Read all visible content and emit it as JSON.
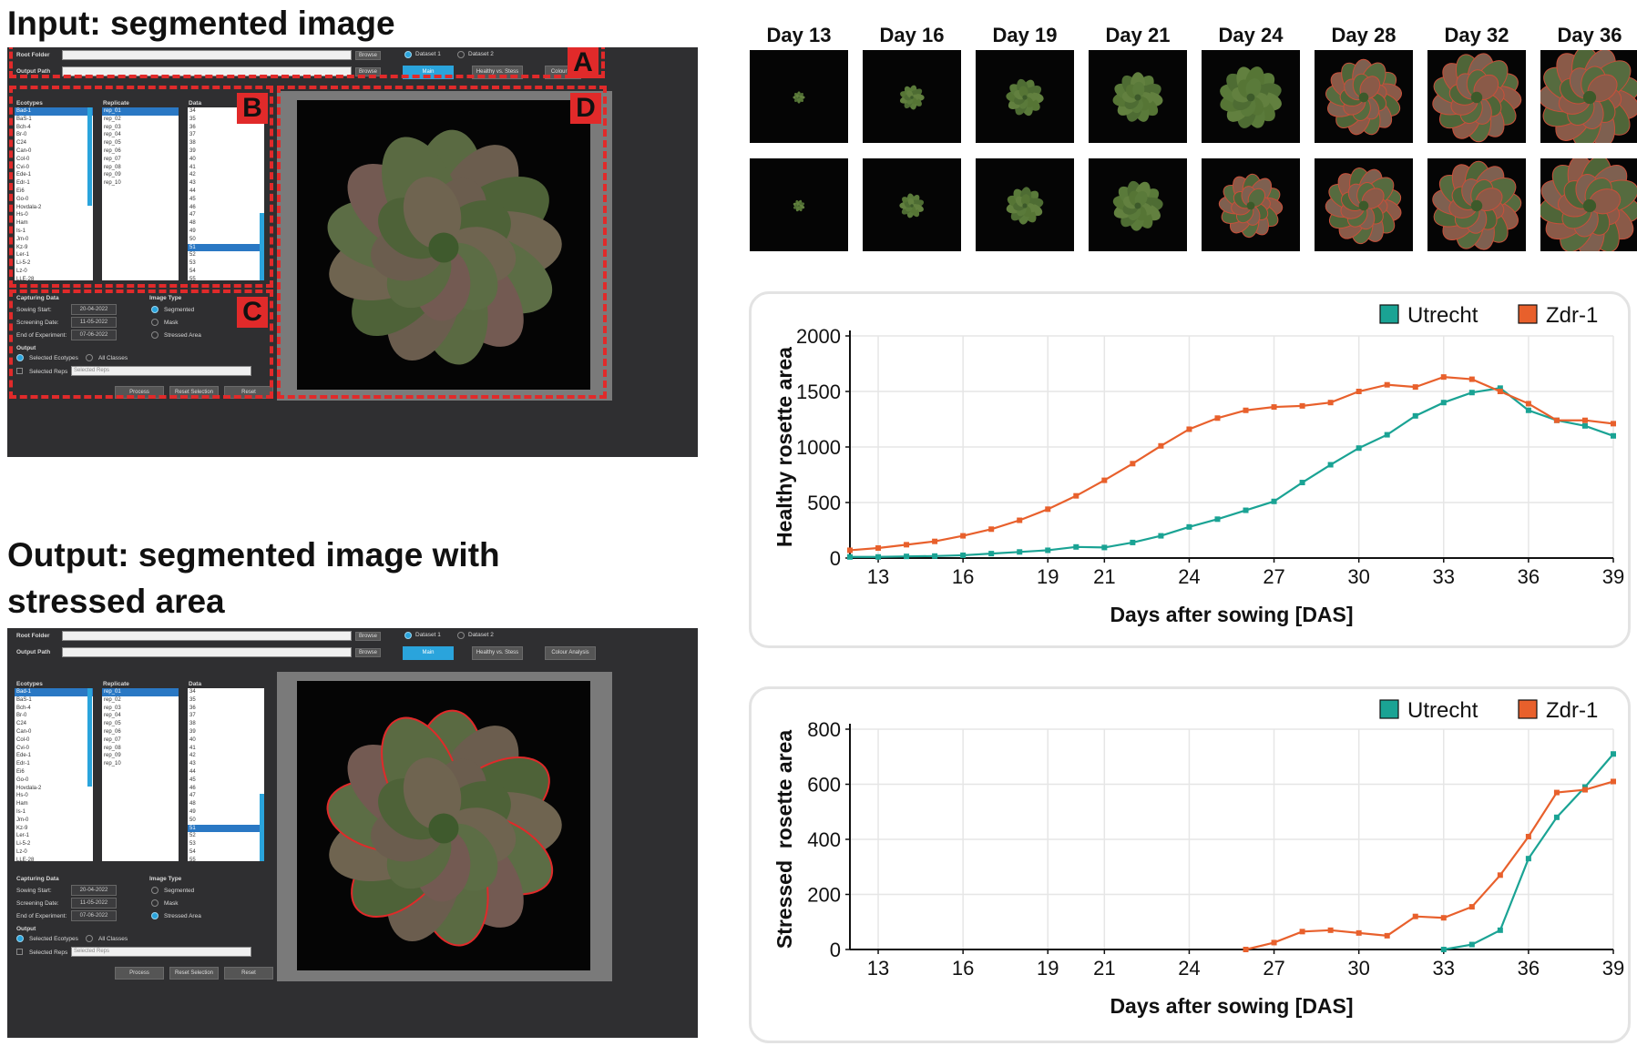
{
  "headings": {
    "input": "Input: segmented image",
    "output_line1": "Output: segmented image with",
    "output_line2": "stressed area"
  },
  "app": {
    "root_folder_label": "Root Folder",
    "output_path_label": "Output Path",
    "browse_label": "Browse",
    "dataset1_label": "Dataset 1",
    "dataset2_label": "Dataset 2",
    "main_label": "Main",
    "healthy_stress_label": "Healthy vs. Stess",
    "colour_analysis_label": "Colour Analysis",
    "colour_analysis_short": "Colour An",
    "ecotypes_header": "Ecotypes",
    "replicate_header": "Replicate",
    "data_header": "Data",
    "ecotypes": [
      "Bad-1",
      "BaS-1",
      "Bch-4",
      "Br-0",
      "C24",
      "Can-0",
      "Col-0",
      "Cvi-0",
      "Ede-1",
      "Edr-1",
      "Ei6",
      "Go-0",
      "Hovdala-2",
      "Hs-0",
      "Ham",
      "Is-1",
      "Jm-0",
      "Kz-9",
      "Ler-1",
      "Li-5-2",
      "Lz-0",
      "LLE-28"
    ],
    "replicates": [
      "rep_01",
      "rep_02",
      "rep_03",
      "rep_04",
      "rep_05",
      "rep_06",
      "rep_07",
      "rep_08",
      "rep_09",
      "rep_10"
    ],
    "data_items": [
      "34",
      "35",
      "36",
      "37",
      "38",
      "39",
      "40",
      "41",
      "42",
      "43",
      "44",
      "45",
      "46",
      "47",
      "48",
      "49",
      "50",
      "51",
      "52",
      "53",
      "54",
      "55"
    ],
    "selected_data_item": "51",
    "capturing_data_label": "Capturing Data",
    "sowing_start_label": "Sowing Start:",
    "screening_date_label": "Screening Date:",
    "end_experiment_label": "End of Experiment:",
    "sowing_start_value": "20-04-2022",
    "screening_date_value": "11-05-2022",
    "end_experiment_value": "07-06-2022",
    "image_type_label": "Image Type",
    "segmented_label": "Segmented",
    "mask_label": "Mask",
    "stressed_area_label": "Stressed Area",
    "output_label": "Output",
    "selected_ecotypes_label": "Selected Ecotypes",
    "all_classes_label": "All Classes",
    "selected_reps_label": "Selected Reps",
    "selected_reps_placeholder": "Selected Reps",
    "process_label": "Process",
    "reset_selection_label": "Reset Selection",
    "reset_label": "Reset",
    "region_tags": [
      "A",
      "B",
      "C",
      "D"
    ],
    "accent_color": "#2aa4dc"
  },
  "days": [
    "Day 13",
    "Day 16",
    "Day 19",
    "Day 21",
    "Day 24",
    "Day 28",
    "Day 32",
    "Day 36"
  ],
  "chart_data": [
    {
      "type": "line",
      "ylabel": "Healthy rosette area",
      "xlabel": "Days after sowing [DAS]",
      "xticks": [
        13,
        16,
        19,
        21,
        24,
        27,
        30,
        33,
        36,
        39
      ],
      "yticks": [
        0,
        500,
        1000,
        1500,
        2000
      ],
      "ylim": [
        0,
        2000
      ],
      "grid": true,
      "legend": "top-right",
      "x": [
        12,
        13,
        14,
        15,
        16,
        17,
        18,
        19,
        20,
        21,
        22,
        23,
        24,
        25,
        26,
        27,
        28,
        29,
        30,
        31,
        32,
        33,
        34,
        35,
        36,
        37,
        38,
        39
      ],
      "series": [
        {
          "name": "Utrecht",
          "color": "#1aa394",
          "values": [
            10,
            10,
            15,
            18,
            25,
            40,
            55,
            70,
            100,
            95,
            140,
            200,
            280,
            350,
            430,
            510,
            680,
            840,
            990,
            1110,
            1280,
            1400,
            1490,
            1530,
            1330,
            1240,
            1190,
            1100
          ]
        },
        {
          "name": "Zdr-1",
          "color": "#e8602c",
          "values": [
            70,
            90,
            120,
            150,
            200,
            260,
            340,
            440,
            560,
            700,
            850,
            1010,
            1160,
            1260,
            1330,
            1360,
            1370,
            1400,
            1500,
            1560,
            1540,
            1630,
            1610,
            1500,
            1390,
            1240,
            1240,
            1210
          ]
        }
      ]
    },
    {
      "type": "line",
      "ylabel": "Stressed  rosette area",
      "xlabel": "Days after sowing [DAS]",
      "xticks": [
        13,
        16,
        19,
        21,
        24,
        27,
        30,
        33,
        36,
        39
      ],
      "yticks": [
        0,
        200,
        400,
        600,
        800
      ],
      "ylim": [
        0,
        800
      ],
      "grid": true,
      "legend": "top-right",
      "series": [
        {
          "name": "Utrecht",
          "color": "#1aa394",
          "x": [
            33,
            34,
            35,
            36,
            37,
            38,
            39
          ],
          "values": [
            0,
            18,
            70,
            330,
            480,
            590,
            710
          ]
        },
        {
          "name": "Zdr-1",
          "color": "#e8602c",
          "x": [
            26,
            27,
            28,
            29,
            30,
            31,
            32,
            33,
            34,
            35,
            36,
            37,
            38,
            39
          ],
          "values": [
            0,
            25,
            65,
            70,
            60,
            50,
            120,
            115,
            155,
            270,
            410,
            570,
            580,
            610
          ]
        }
      ]
    }
  ]
}
